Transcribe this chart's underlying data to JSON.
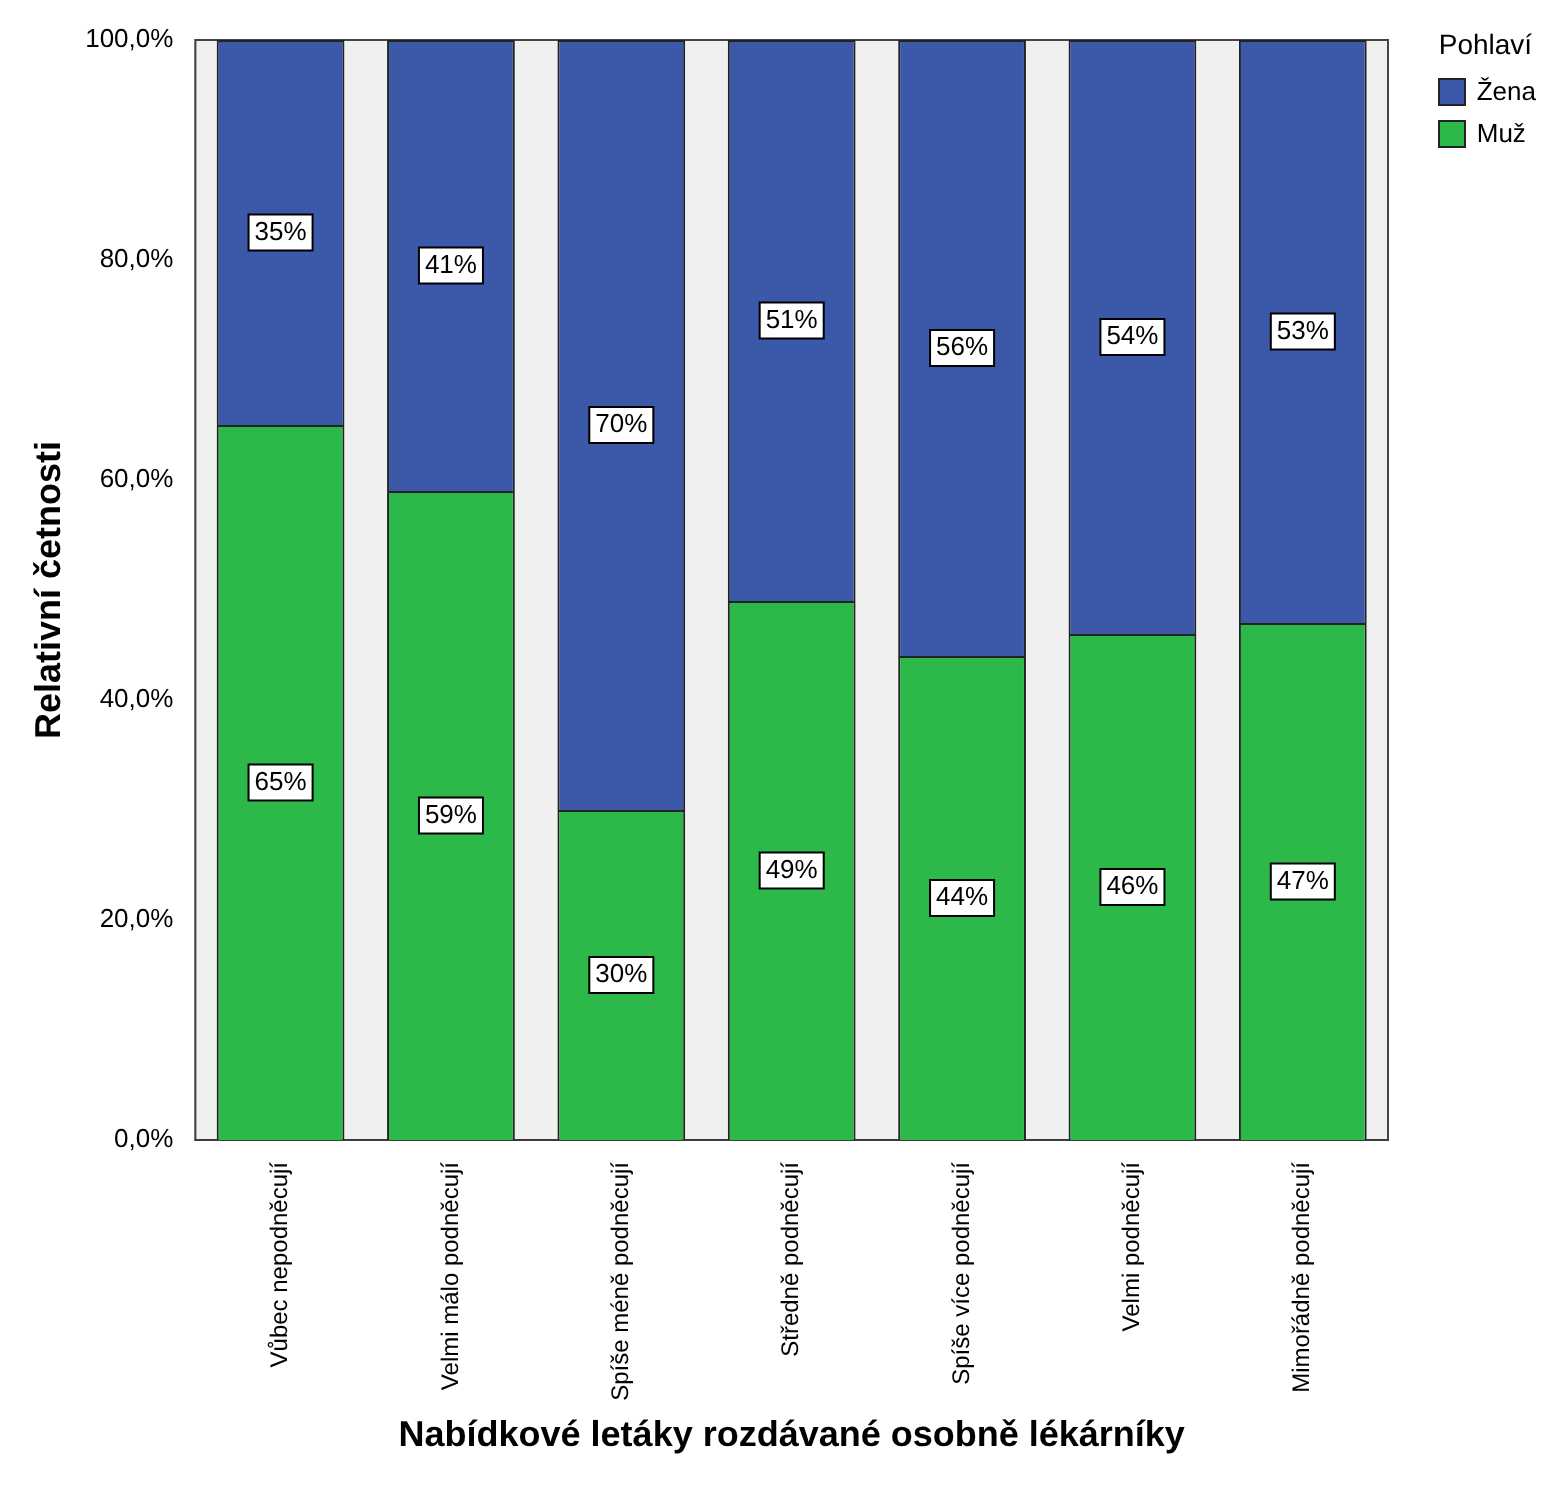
{
  "chart_data": {
    "type": "bar",
    "stacked": true,
    "xlabel": "Nabídkové letáky rozdávané osobně lékárníky",
    "ylabel": "Relativní četnosti",
    "legend_title": "Pohlaví",
    "legend": "top right",
    "grid": false,
    "categories": [
      "Vůbec nepodněcují",
      "Velmi málo podněcují",
      "Spíše méně podněcují",
      "Středně podněcují",
      "Spíše více podněcují",
      "Velmi podněcují",
      "Mimořádně podněcují"
    ],
    "ylim": [
      0,
      100
    ],
    "yticks": [
      {
        "value": 0,
        "label": "0,0%"
      },
      {
        "value": 20,
        "label": "20,0%"
      },
      {
        "value": 40,
        "label": "40,0%"
      },
      {
        "value": 60,
        "label": "60,0%"
      },
      {
        "value": 80,
        "label": "80,0%"
      },
      {
        "value": 100,
        "label": "100,0%"
      }
    ],
    "series": [
      {
        "name": "Muž",
        "color": "#2db84a",
        "values": [
          65,
          59,
          30,
          49,
          44,
          46,
          47
        ],
        "value_labels": [
          "65%",
          "59%",
          "30%",
          "49%",
          "44%",
          "46%",
          "47%"
        ]
      },
      {
        "name": "Žena",
        "color": "#3c58a8",
        "values": [
          35,
          41,
          70,
          51,
          56,
          54,
          53
        ],
        "value_labels": [
          "35%",
          "41%",
          "70%",
          "51%",
          "56%",
          "54%",
          "53%"
        ]
      }
    ]
  }
}
